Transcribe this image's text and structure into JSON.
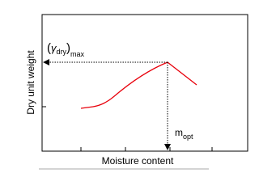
{
  "y_axis_label": "Dry unit weight",
  "x_axis_label": "Moisture content",
  "max_dry_unit_weight": {
    "open": "(",
    "symbol": "γ",
    "subscript": "dry",
    "close": ")",
    "outer_subscript": "max"
  },
  "optimum_moisture": {
    "symbol": "m",
    "subscript": "opt"
  }
}
